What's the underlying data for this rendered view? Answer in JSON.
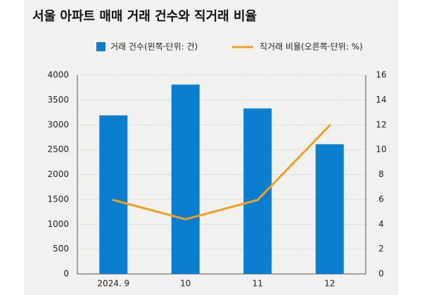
{
  "colors": {
    "background": "#f1f1ef",
    "bar": "#0b7ed0",
    "line": "#f0a020",
    "axis": "#555555",
    "text": "#222222"
  },
  "chart_data": {
    "type": "bar",
    "title": "서울 아파트 매매 거래 건수와 직거래 비율",
    "categories": [
      "2024. 9",
      "10",
      "11",
      "12"
    ],
    "series": [
      {
        "name": "거래 건수(왼쪽·단위: 건)",
        "type": "bar",
        "axis": "left",
        "color": "#0b7ed0",
        "values": [
          3190,
          3810,
          3330,
          2610
        ]
      },
      {
        "name": "직거래 비율(오른쪽·단위: %)",
        "type": "line",
        "axis": "right",
        "color": "#f0a020",
        "values": [
          5.95,
          4.4,
          5.95,
          11.95
        ]
      }
    ],
    "y_left": {
      "range": [
        0,
        4000
      ],
      "ticks": [
        "0",
        "500",
        "1000",
        "1500",
        "2000",
        "2500",
        "3000",
        "3500",
        "4000"
      ]
    },
    "y_right": {
      "range": [
        0,
        16
      ],
      "ticks": [
        "0",
        "2",
        "4",
        "6",
        "8",
        "10",
        "12",
        "14",
        "16"
      ]
    },
    "grid": "horizontal",
    "legend_position": "top"
  }
}
